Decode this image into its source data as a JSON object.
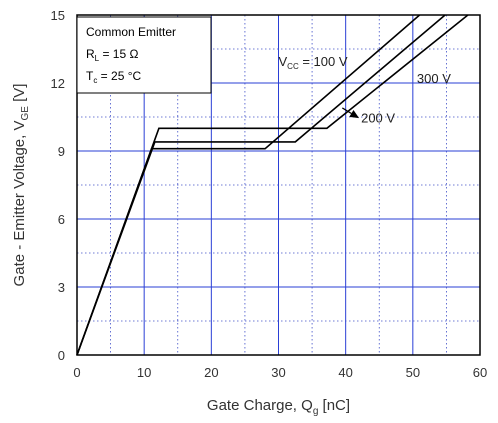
{
  "chart_data": {
    "type": "line",
    "title": "",
    "xlabel": {
      "main": "Gate Charge, Q",
      "sub": "g",
      "unit": " [nC]"
    },
    "ylabel": {
      "main": "Gate - Emitter Voltage, V",
      "sub": "GE",
      "unit": " [V]"
    },
    "xlim": [
      0,
      60
    ],
    "ylim": [
      0,
      15
    ],
    "x_ticks": [
      "0",
      "10",
      "20",
      "30",
      "40",
      "50",
      "60"
    ],
    "y_ticks": [
      "0",
      "3",
      "6",
      "9",
      "12",
      "15"
    ],
    "grid": true,
    "legend": {
      "placement": "top-left",
      "lines": [
        {
          "main": "Common Emitter",
          "sub": "",
          "tail": ""
        },
        {
          "main": "R",
          "sub": "L",
          "tail": " = 15 Ω"
        },
        {
          "main": "T",
          "sub": "c",
          "tail": " = 25 °C"
        }
      ]
    },
    "series": [
      {
        "name": "100 V",
        "color": "#000000",
        "points": [
          [
            0,
            0
          ],
          [
            11.1,
            9.1
          ],
          [
            28.0,
            9.1
          ],
          [
            51.0,
            15.0
          ]
        ]
      },
      {
        "name": "200 V",
        "color": "#000000",
        "points": [
          [
            0,
            0
          ],
          [
            11.6,
            9.4
          ],
          [
            32.5,
            9.4
          ],
          [
            54.8,
            15.0
          ]
        ]
      },
      {
        "name": "300 V",
        "color": "#000000",
        "points": [
          [
            0,
            0
          ],
          [
            12.2,
            10.0
          ],
          [
            37.2,
            10.0
          ],
          [
            58.2,
            15.0
          ]
        ]
      }
    ],
    "annotations": [
      {
        "main": "V",
        "sub": "CC",
        "tail": " = 100 V",
        "x": 30.0,
        "y": 12.75
      },
      {
        "main": "300 V",
        "sub": "",
        "tail": "",
        "x": 50.6,
        "y": 12.0
      },
      {
        "main": "200 V",
        "sub": "",
        "tail": "",
        "x": 42.3,
        "y": 10.25
      }
    ],
    "arrow": {
      "from": [
        39.5,
        10.9
      ],
      "to": [
        42.0,
        10.45
      ]
    }
  }
}
